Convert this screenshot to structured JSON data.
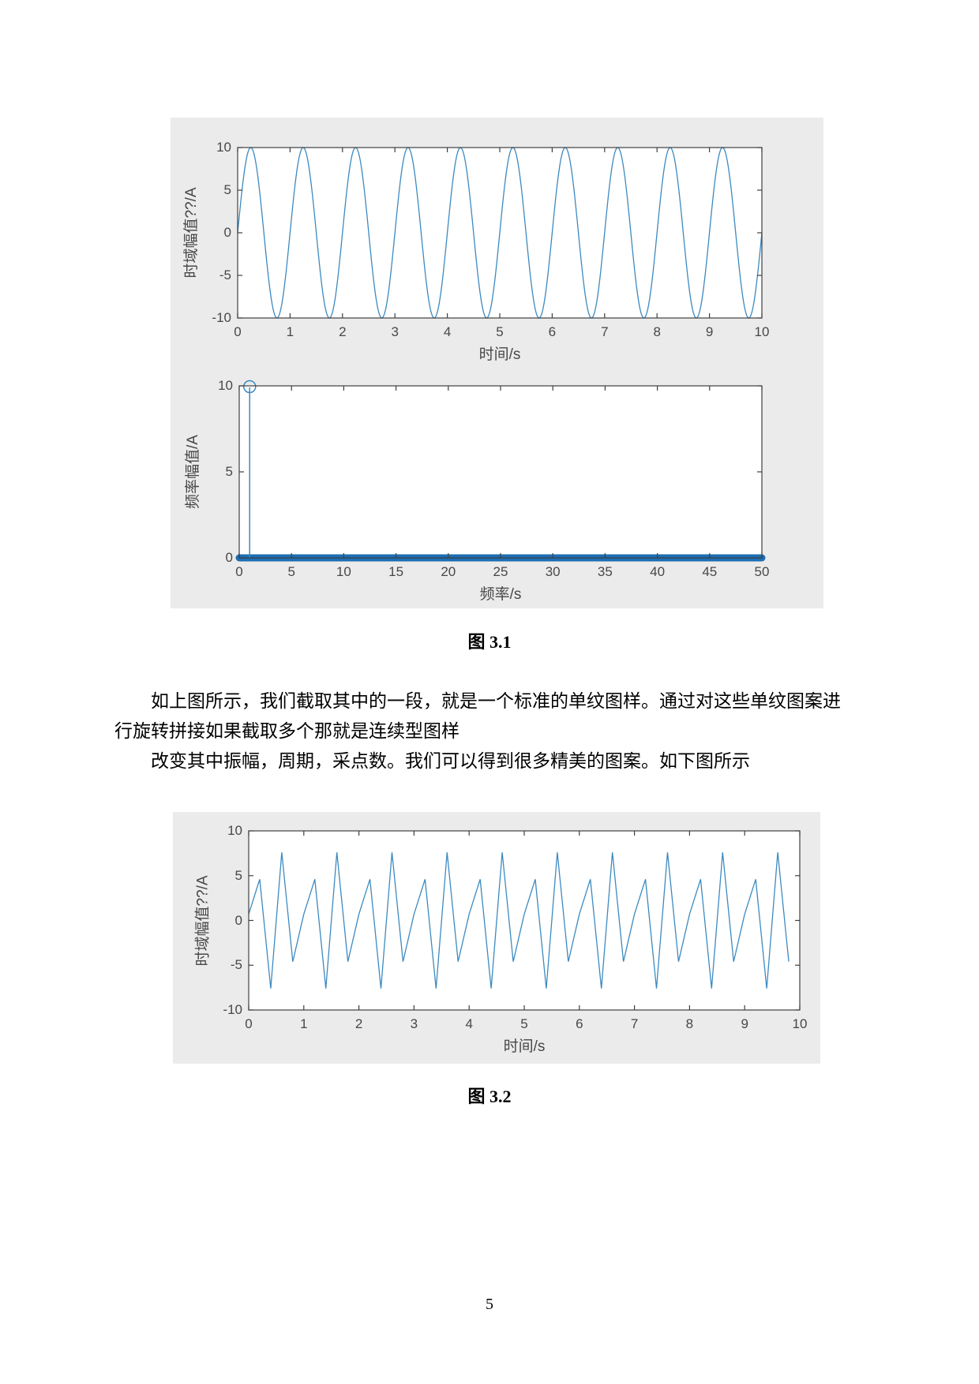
{
  "page": {
    "number": "5"
  },
  "figures": {
    "fig1_caption": "图 3.1",
    "fig2_caption": "图 3.2"
  },
  "paragraph": {
    "line1": "如上图所示，我们截取其中的一段，就是一个标准的单纹图样。通过对这些单纹图案进",
    "line2": "行旋转拼接如果截取多个那就是连续型图样",
    "line3": "改变其中振幅，周期，采点数。我们可以得到很多精美的图案。如下图所示"
  },
  "colors": {
    "panel_bg": "#ebebeb",
    "plot_bg": "#ffffff",
    "axis": "#3f3f3f",
    "tick_text": "#474747",
    "line": "#3c8ac0",
    "stem": "#1c6fb4"
  },
  "chart_data": [
    {
      "id": "time-domain-plot",
      "type": "line",
      "title": "",
      "xlabel": "时间/s",
      "ylabel": "时域幅值??/A",
      "xlim": [
        0,
        10
      ],
      "ylim": [
        -10,
        10
      ],
      "xticks": [
        0,
        1,
        2,
        3,
        4,
        5,
        6,
        7,
        8,
        9,
        10
      ],
      "yticks": [
        10,
        5,
        0,
        -5,
        -10
      ],
      "grid": false,
      "series": [
        {
          "name": "sine-wave",
          "fn": "sine",
          "amplitude": 10,
          "frequency": 1,
          "phase": 0,
          "t_start": 0,
          "t_end": 10
        }
      ]
    },
    {
      "id": "frequency-spectrum-plot",
      "type": "stem",
      "title": "",
      "xlabel": "频率/s",
      "ylabel": "频率幅值/A",
      "xlim": [
        0,
        50
      ],
      "ylim": [
        0,
        10
      ],
      "xticks": [
        0,
        5,
        10,
        15,
        20,
        25,
        30,
        35,
        40,
        45,
        50
      ],
      "yticks": [
        0,
        5,
        10
      ],
      "grid": false,
      "series": [
        {
          "name": "amplitude-spectrum",
          "peak_x": 1,
          "peak_y": 10,
          "zero_range": [
            0,
            50
          ],
          "baseline_y": 0
        }
      ]
    },
    {
      "id": "pattern-plot",
      "type": "line",
      "title": "",
      "xlabel": "时间/s",
      "ylabel": "时域幅值??/A",
      "xlim": [
        0,
        10
      ],
      "ylim": [
        -10,
        10
      ],
      "xticks": [
        0,
        1,
        2,
        3,
        4,
        5,
        6,
        7,
        8,
        9,
        10
      ],
      "yticks": [
        10,
        5,
        0,
        -5,
        -10
      ],
      "grid": false,
      "series": [
        {
          "name": "sampled-zigzag-wave",
          "x": [
            0,
            0.2,
            0.4,
            0.6,
            0.8,
            1,
            1.2,
            1.4,
            1.6,
            1.8,
            2,
            2.2,
            2.4,
            2.6,
            2.8,
            3,
            3.2,
            3.4,
            3.6,
            3.8,
            4,
            4.2,
            4.4,
            4.6,
            4.8,
            5,
            5.2,
            5.4,
            5.6,
            5.8,
            6,
            6.2,
            6.4,
            6.6,
            6.8,
            7,
            7.2,
            7.4,
            7.6,
            7.8,
            8,
            8.2,
            8.4,
            8.6,
            8.8,
            9,
            9.2,
            9.4,
            9.6,
            9.8
          ],
          "y": [
            0.7,
            4.6,
            -7.6,
            7.6,
            -4.6,
            0.7,
            4.6,
            -7.6,
            7.6,
            -4.6,
            0.7,
            4.6,
            -7.6,
            7.6,
            -4.6,
            0.7,
            4.6,
            -7.6,
            7.6,
            -4.6,
            0.7,
            4.6,
            -7.6,
            7.6,
            -4.6,
            0.7,
            4.6,
            -7.6,
            7.6,
            -4.6,
            0.7,
            4.6,
            -7.6,
            7.6,
            -4.6,
            0.7,
            4.6,
            -7.6,
            7.6,
            -4.6,
            0.7,
            4.6,
            -7.6,
            7.6,
            -4.6,
            0.7,
            4.6,
            -7.6,
            7.6,
            -4.6
          ]
        }
      ]
    }
  ]
}
